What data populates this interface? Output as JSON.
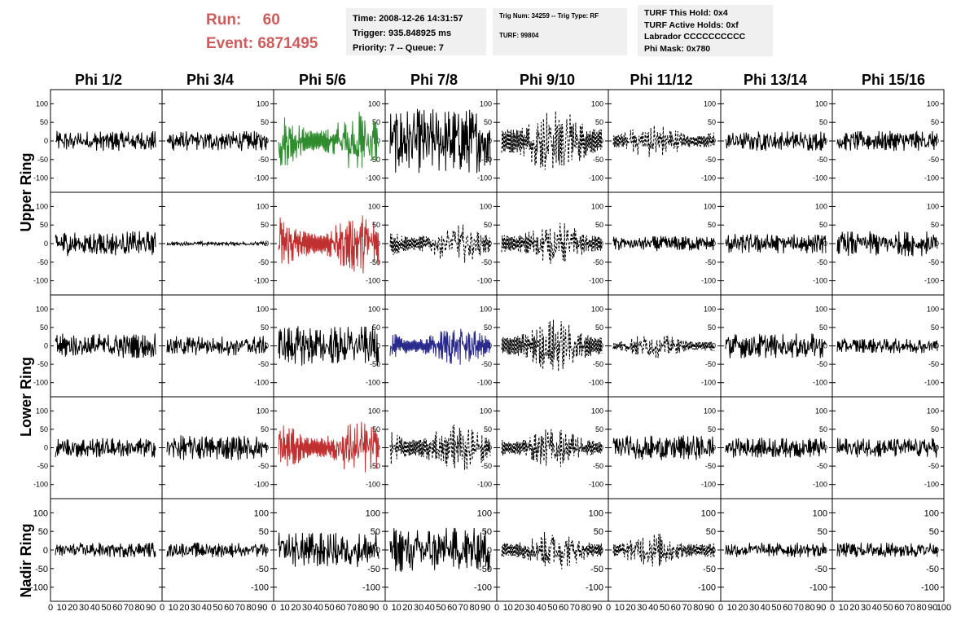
{
  "run_label": "Run:",
  "run_value": "60",
  "event_label": "Event:",
  "event_value": "6871495",
  "info_box_1": {
    "time": "Time: 2008-12-26 14:31:57",
    "trigger": "Trigger: 935.848925 ms",
    "priority": "Priority: 7 -- Queue: 7"
  },
  "info_box_2": {
    "trig": "Trig Num: 34259 -- Trig Type: RF",
    "turf": "TURF: 99804"
  },
  "info_box_3": {
    "hold": "TURF This Hold: 0x4",
    "active": "TURF Active Holds: 0xf",
    "labrador": "Labrador CCCCCCCCCC",
    "phimask": "Phi Mask: 0x780"
  },
  "column_headers": [
    "Phi 1/2",
    "Phi 3/4",
    "Phi 5/6",
    "Phi 7/8",
    "Phi 9/10",
    "Phi 11/12",
    "Phi 13/14",
    "Phi 15/16"
  ],
  "ring_labels": [
    "Upper Ring",
    "Lower Ring",
    "Nadir Ring"
  ],
  "y_ticks": [
    "100",
    "50",
    "0",
    "-50",
    "-100"
  ],
  "x_axis_labels": [
    "0",
    "10",
    "20",
    "30",
    "40",
    "50",
    "60",
    "70",
    "80",
    "90",
    "100"
  ],
  "colors": {
    "run_text": "#cd5c5c",
    "green_trace": "#2e8b2e",
    "red_trace": "#c03030",
    "blue_trace": "#2a2a8c",
    "black_trace": "#000000",
    "info_box_bg": "#f0f0f0"
  },
  "panels": [
    [
      "solid",
      "solid",
      "green",
      "solid",
      "dashed",
      "dashed",
      "solid",
      "solid"
    ],
    [
      "solid",
      "solid",
      "red",
      "dashed",
      "dashed",
      "solid",
      "solid",
      "solid"
    ],
    [
      "solid",
      "solid",
      "solid",
      "blue",
      "dashed",
      "dashed",
      "solid",
      "solid"
    ],
    [
      "solid",
      "solid",
      "red",
      "dashed",
      "dashed",
      "solid",
      "solid",
      "solid"
    ],
    [
      "solid",
      "solid",
      "solid",
      "solid",
      "dashed",
      "dashed",
      "solid",
      "solid"
    ]
  ],
  "panel_amplitude": [
    [
      20,
      20,
      60,
      65,
      70,
      35,
      20,
      20
    ],
    [
      25,
      4,
      60,
      40,
      45,
      15,
      20,
      25
    ],
    [
      25,
      20,
      40,
      40,
      55,
      25,
      25,
      15
    ],
    [
      20,
      25,
      55,
      50,
      40,
      25,
      20,
      20
    ],
    [
      15,
      15,
      35,
      45,
      40,
      35,
      15,
      15
    ]
  ]
}
